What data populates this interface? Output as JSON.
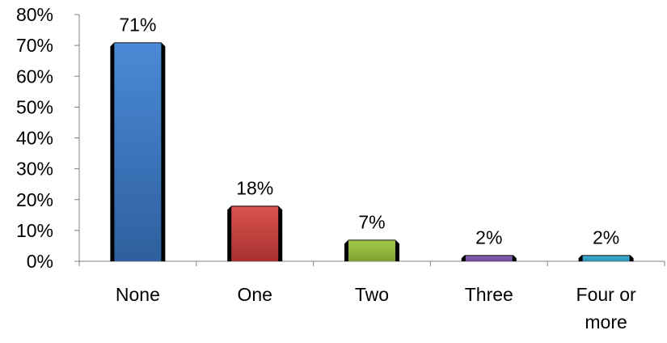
{
  "chart_data": {
    "type": "bar",
    "title": "",
    "xlabel": "",
    "ylabel": "",
    "categories": [
      "None",
      "One",
      "Two",
      "Three",
      "Four or more"
    ],
    "category_lines": [
      [
        "None"
      ],
      [
        "One"
      ],
      [
        "Two"
      ],
      [
        "Three"
      ],
      [
        "Four or",
        "more"
      ]
    ],
    "values": [
      71,
      18,
      7,
      2,
      2
    ],
    "data_labels": [
      "71%",
      "18%",
      "7%",
      "2%",
      "2%"
    ],
    "ylim": [
      0,
      80
    ],
    "yticks": [
      0,
      10,
      20,
      30,
      40,
      50,
      60,
      70,
      80
    ],
    "ytick_labels": [
      "0%",
      "10%",
      "20%",
      "30%",
      "40%",
      "50%",
      "60%",
      "70%",
      "80%"
    ],
    "grid": false,
    "legend": "none",
    "bar_colors": [
      [
        "#4a8ad6",
        "#2e5f9e"
      ],
      [
        "#d9534f",
        "#a83230"
      ],
      [
        "#a3c94a",
        "#7da12f"
      ],
      [
        "#8a64b8",
        "#6a4796"
      ],
      [
        "#42b4d6",
        "#2a8cae"
      ]
    ]
  }
}
